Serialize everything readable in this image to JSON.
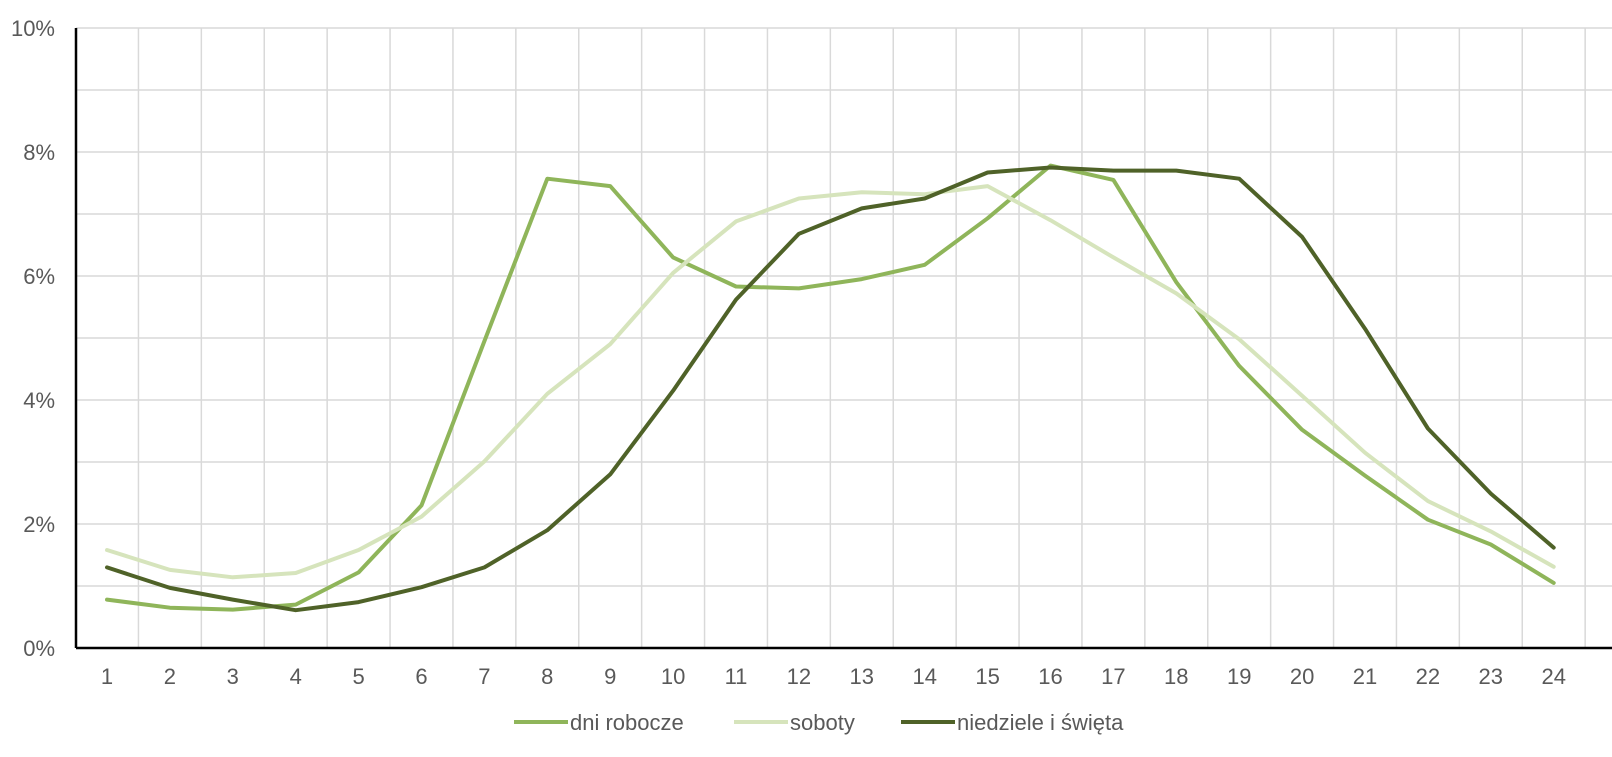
{
  "chart_data": {
    "type": "line",
    "title": "",
    "xlabel": "",
    "ylabel": "",
    "x": [
      1,
      2,
      3,
      4,
      5,
      6,
      7,
      8,
      9,
      10,
      11,
      12,
      13,
      14,
      15,
      16,
      17,
      18,
      19,
      20,
      21,
      22,
      23,
      24
    ],
    "x_tick_labels": [
      "1",
      "2",
      "3",
      "4",
      "5",
      "6",
      "7",
      "8",
      "9",
      "10",
      "11",
      "12",
      "13",
      "14",
      "15",
      "16",
      "17",
      "18",
      "19",
      "20",
      "21",
      "22",
      "23",
      "24"
    ],
    "ylim": [
      0,
      10
    ],
    "y_ticks": [
      0,
      2,
      4,
      6,
      8,
      10
    ],
    "y_tick_labels": [
      "0%",
      "2%",
      "4%",
      "6%",
      "8%",
      "10%"
    ],
    "grid": true,
    "legend_position": "bottom",
    "series": [
      {
        "name": "dni robocze",
        "color": "#8fb55a",
        "values": [
          0.78,
          0.65,
          0.62,
          0.7,
          1.22,
          2.3,
          4.95,
          7.57,
          7.45,
          6.3,
          5.83,
          5.8,
          5.95,
          6.18,
          6.93,
          7.78,
          7.55,
          5.9,
          4.55,
          3.52,
          2.78,
          2.07,
          1.67,
          1.05
        ]
      },
      {
        "name": "soboty",
        "color": "#d6e4bc",
        "values": [
          1.58,
          1.26,
          1.14,
          1.21,
          1.58,
          2.12,
          3.01,
          4.1,
          4.9,
          6.05,
          6.88,
          7.25,
          7.35,
          7.32,
          7.45,
          6.9,
          6.3,
          5.72,
          4.98,
          4.07,
          3.15,
          2.37,
          1.88,
          1.31
        ]
      },
      {
        "name": "niedziele i święta",
        "color": "#4f6228",
        "values": [
          1.3,
          0.97,
          0.78,
          0.61,
          0.74,
          0.98,
          1.3,
          1.9,
          2.8,
          4.15,
          5.62,
          6.68,
          7.09,
          7.25,
          7.67,
          7.75,
          7.7,
          7.7,
          7.57,
          6.63,
          5.15,
          3.54,
          2.49,
          1.62
        ]
      }
    ]
  }
}
